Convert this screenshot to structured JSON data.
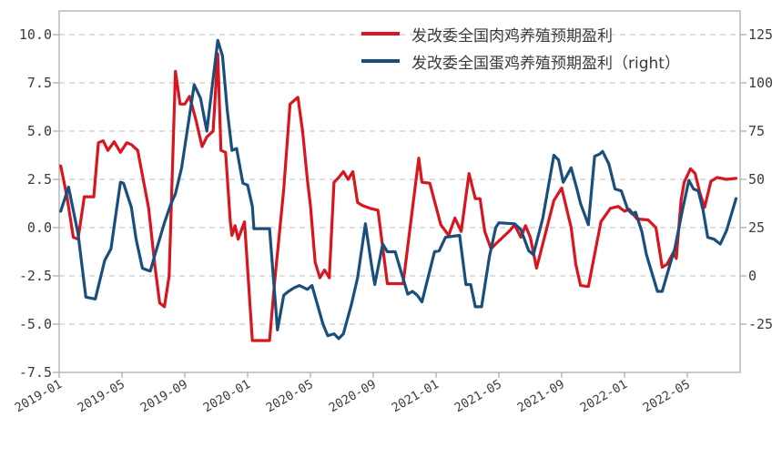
{
  "chart_data": {
    "type": "line",
    "title": "",
    "grid": "horizontal-dashed",
    "legend_position": "top-right-inside",
    "background_color": "#ffffff",
    "grid_color": "#cbcbcb",
    "spine_color": "#b3b3b3",
    "tick_label_color": "#3b3b3b",
    "x_axis": {
      "tick_labels": [
        "2019-01",
        "2019-05",
        "2019-09",
        "2020-01",
        "2020-05",
        "2020-09",
        "2021-01",
        "2021-05",
        "2021-09",
        "2022-01",
        "2022-05"
      ],
      "tick_interval_months": 4,
      "start": "2019-01",
      "end": "2022-08",
      "label_rotation_deg": -30
    },
    "y_axis_left": {
      "tick_labels": [
        "10.0",
        "7.5",
        "5.0",
        "2.5",
        "0.0",
        "-2.5",
        "-5.0",
        "-7.5"
      ],
      "tick_values": [
        10.0,
        7.5,
        5.0,
        2.5,
        0.0,
        -2.5,
        -5.0,
        -7.5
      ],
      "range": [
        -7.5,
        11.2
      ]
    },
    "y_axis_right": {
      "tick_labels": [
        "125",
        "100",
        "75",
        "50",
        "25",
        "0",
        "-25"
      ],
      "tick_values": [
        125,
        100,
        75,
        50,
        25,
        0,
        -25
      ],
      "range": [
        -50,
        137
      ]
    },
    "legend": [
      {
        "label": "发改委全国肉鸡养殖预期盈利",
        "color": "#d7161e",
        "axis": "left"
      },
      {
        "label": "发改委全国蛋鸡养殖预期盈利（right）",
        "color": "#1a4f7d",
        "axis": "right"
      }
    ],
    "series": [
      {
        "name": "发改委全国肉鸡养殖预期盈利",
        "axis": "left",
        "color": "#d7161e",
        "x_unit": "months_since_2019_01",
        "points": [
          [
            0.1,
            3.2
          ],
          [
            0.5,
            1.6
          ],
          [
            0.9,
            -0.5
          ],
          [
            1.2,
            -0.6
          ],
          [
            1.6,
            1.6
          ],
          [
            2.2,
            1.6
          ],
          [
            2.5,
            4.4
          ],
          [
            2.8,
            4.5
          ],
          [
            3.1,
            4.0
          ],
          [
            3.5,
            4.45
          ],
          [
            3.9,
            3.9
          ],
          [
            4.3,
            4.4
          ],
          [
            4.6,
            4.3
          ],
          [
            5.0,
            4.0
          ],
          [
            5.7,
            1.0
          ],
          [
            6.1,
            -2.0
          ],
          [
            6.4,
            -3.9
          ],
          [
            6.7,
            -4.1
          ],
          [
            7.0,
            -2.5
          ],
          [
            7.4,
            8.1
          ],
          [
            7.7,
            6.4
          ],
          [
            8.0,
            6.4
          ],
          [
            8.3,
            6.8
          ],
          [
            8.7,
            5.6
          ],
          [
            9.1,
            4.2
          ],
          [
            9.4,
            4.7
          ],
          [
            9.8,
            5.0
          ],
          [
            10.1,
            9.0
          ],
          [
            10.3,
            4.0
          ],
          [
            10.6,
            3.9
          ],
          [
            10.9,
            0.3
          ],
          [
            11.0,
            -0.4
          ],
          [
            11.2,
            0.1
          ],
          [
            11.4,
            -0.6
          ],
          [
            11.8,
            0.3
          ],
          [
            12.3,
            -5.85
          ],
          [
            13.4,
            -5.85
          ],
          [
            13.7,
            -3.0
          ],
          [
            14.3,
            2.0
          ],
          [
            14.7,
            6.4
          ],
          [
            15.2,
            6.75
          ],
          [
            15.5,
            5.0
          ],
          [
            15.8,
            2.5
          ],
          [
            16.0,
            1.15
          ],
          [
            16.3,
            -1.8
          ],
          [
            16.6,
            -2.6
          ],
          [
            16.9,
            -2.2
          ],
          [
            17.2,
            -2.6
          ],
          [
            17.5,
            2.35
          ],
          [
            17.8,
            2.6
          ],
          [
            18.1,
            2.9
          ],
          [
            18.4,
            2.5
          ],
          [
            18.7,
            2.9
          ],
          [
            19.0,
            1.3
          ],
          [
            19.3,
            1.15
          ],
          [
            19.8,
            1.0
          ],
          [
            20.3,
            0.9
          ],
          [
            20.9,
            -2.9
          ],
          [
            21.9,
            -2.9
          ],
          [
            22.9,
            3.6
          ],
          [
            23.1,
            2.35
          ],
          [
            23.6,
            2.3
          ],
          [
            24.3,
            0.15
          ],
          [
            24.8,
            -0.4
          ],
          [
            25.2,
            0.5
          ],
          [
            25.6,
            -0.2
          ],
          [
            26.1,
            2.8
          ],
          [
            26.5,
            1.5
          ],
          [
            26.8,
            1.5
          ],
          [
            27.1,
            -0.2
          ],
          [
            27.5,
            -1.1
          ],
          [
            27.8,
            -0.85
          ],
          [
            28.7,
            -0.15
          ],
          [
            29.0,
            0.15
          ],
          [
            29.4,
            -0.5
          ],
          [
            29.7,
            0.1
          ],
          [
            30.0,
            -0.5
          ],
          [
            30.4,
            -2.1
          ],
          [
            31.5,
            1.4
          ],
          [
            32.0,
            2.05
          ],
          [
            32.6,
            0.0
          ],
          [
            32.9,
            -1.9
          ],
          [
            33.2,
            -3.0
          ],
          [
            33.7,
            -3.05
          ],
          [
            34.5,
            0.3
          ],
          [
            35.1,
            1.0
          ],
          [
            35.6,
            1.1
          ],
          [
            36.0,
            0.85
          ],
          [
            36.3,
            0.95
          ],
          [
            36.8,
            0.45
          ],
          [
            37.5,
            0.4
          ],
          [
            38.0,
            0.0
          ],
          [
            38.4,
            -2.05
          ],
          [
            38.7,
            -1.9
          ],
          [
            39.1,
            -1.3
          ],
          [
            39.3,
            -1.6
          ],
          [
            39.6,
            1.4
          ],
          [
            39.8,
            2.35
          ],
          [
            40.2,
            3.05
          ],
          [
            40.5,
            2.8
          ],
          [
            40.8,
            1.8
          ],
          [
            41.1,
            1.05
          ],
          [
            41.5,
            2.4
          ],
          [
            41.9,
            2.6
          ],
          [
            42.5,
            2.5
          ],
          [
            43.1,
            2.55
          ]
        ]
      },
      {
        "name": "发改委全国蛋鸡养殖预期盈利（right）",
        "axis": "right",
        "color": "#1a4f7d",
        "x_unit": "months_since_2019_01",
        "points": [
          [
            0.1,
            33.5
          ],
          [
            0.6,
            46
          ],
          [
            1.2,
            22
          ],
          [
            1.7,
            -11
          ],
          [
            2.3,
            -12
          ],
          [
            2.9,
            8
          ],
          [
            3.3,
            14
          ],
          [
            3.7,
            37
          ],
          [
            3.9,
            48.5
          ],
          [
            4.1,
            48
          ],
          [
            4.6,
            35.5
          ],
          [
            4.9,
            19
          ],
          [
            5.3,
            4
          ],
          [
            5.6,
            3
          ],
          [
            5.8,
            2.5
          ],
          [
            6.1,
            11
          ],
          [
            6.7,
            27.5
          ],
          [
            7.1,
            37
          ],
          [
            7.4,
            42.5
          ],
          [
            7.8,
            56
          ],
          [
            8.6,
            99
          ],
          [
            9.0,
            92
          ],
          [
            9.4,
            75
          ],
          [
            9.7,
            95
          ],
          [
            10.1,
            122
          ],
          [
            10.4,
            114
          ],
          [
            10.7,
            86
          ],
          [
            11.0,
            65
          ],
          [
            11.3,
            66
          ],
          [
            11.7,
            48
          ],
          [
            12.0,
            47
          ],
          [
            12.3,
            36
          ],
          [
            12.4,
            24.5
          ],
          [
            13.4,
            24.5
          ],
          [
            13.9,
            -28
          ],
          [
            14.3,
            -10
          ],
          [
            14.6,
            -8
          ],
          [
            15.0,
            -6
          ],
          [
            15.3,
            -5
          ],
          [
            15.8,
            -7
          ],
          [
            16.1,
            -5
          ],
          [
            16.8,
            -25
          ],
          [
            17.1,
            -31
          ],
          [
            17.5,
            -30
          ],
          [
            17.8,
            -32.5
          ],
          [
            18.1,
            -30
          ],
          [
            18.6,
            -15
          ],
          [
            19.0,
            -1
          ],
          [
            19.5,
            27
          ],
          [
            19.9,
            5
          ],
          [
            20.1,
            -4.5
          ],
          [
            20.6,
            16.5
          ],
          [
            20.9,
            12.5
          ],
          [
            21.4,
            12.5
          ],
          [
            22.2,
            -9.5
          ],
          [
            22.5,
            -8
          ],
          [
            22.8,
            -10
          ],
          [
            23.1,
            -13.5
          ],
          [
            23.9,
            12.5
          ],
          [
            24.2,
            13
          ],
          [
            24.6,
            20
          ],
          [
            25.5,
            21
          ],
          [
            25.9,
            -4.5
          ],
          [
            26.2,
            -4.5
          ],
          [
            26.5,
            -16
          ],
          [
            26.9,
            -16
          ],
          [
            27.4,
            10
          ],
          [
            27.8,
            25
          ],
          [
            28.0,
            27.5
          ],
          [
            29.0,
            27
          ],
          [
            29.4,
            24
          ],
          [
            29.9,
            13
          ],
          [
            30.2,
            11
          ],
          [
            30.8,
            30
          ],
          [
            31.5,
            62.5
          ],
          [
            31.8,
            60
          ],
          [
            32.1,
            48.5
          ],
          [
            32.6,
            56
          ],
          [
            33.0,
            44
          ],
          [
            33.2,
            37.5
          ],
          [
            33.7,
            26.5
          ],
          [
            34.1,
            62
          ],
          [
            34.4,
            63
          ],
          [
            34.6,
            64.5
          ],
          [
            35.0,
            58
          ],
          [
            35.4,
            45
          ],
          [
            35.8,
            44
          ],
          [
            36.2,
            34.5
          ],
          [
            36.5,
            32
          ],
          [
            36.7,
            33
          ],
          [
            37.1,
            23
          ],
          [
            37.4,
            11
          ],
          [
            38.1,
            -8
          ],
          [
            38.4,
            -8
          ],
          [
            38.9,
            6
          ],
          [
            39.2,
            14
          ],
          [
            39.7,
            34.5
          ],
          [
            40.1,
            49.5
          ],
          [
            40.4,
            45
          ],
          [
            40.7,
            44
          ],
          [
            41.0,
            34
          ],
          [
            41.3,
            20
          ],
          [
            41.7,
            19
          ],
          [
            42.1,
            16.5
          ],
          [
            42.5,
            23.5
          ],
          [
            43.1,
            40
          ]
        ]
      }
    ]
  }
}
